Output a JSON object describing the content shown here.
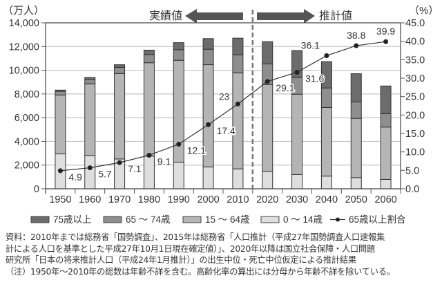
{
  "chart_data": {
    "type": "bar",
    "stacked": true,
    "categories": [
      "1950",
      "1960",
      "1970",
      "1980",
      "1990",
      "2000",
      "2010",
      "2020",
      "2030",
      "2040",
      "2050",
      "2060"
    ],
    "series": [
      {
        "name": "0 ～ 14歳",
        "color": "#dedede",
        "values": [
          2943,
          2807,
          2515,
          2751,
          2249,
          1847,
          1680,
          1457,
          1204,
          1073,
          939,
          791
        ]
      },
      {
        "name": "15 ～ 64歳",
        "color": "#b5b5b5",
        "values": [
          4966,
          6047,
          7212,
          7883,
          8590,
          8622,
          8103,
          7341,
          6773,
          5787,
          5001,
          4418
        ]
      },
      {
        "name": "65 ～ 74歳",
        "color": "#8e8e8e",
        "values": [
          309,
          375,
          516,
          699,
          892,
          1301,
          1517,
          1733,
          1407,
          1645,
          1383,
          1128
        ]
      },
      {
        "name": "75歳以上",
        "color": "#6c6c6c",
        "values": [
          106,
          163,
          224,
          366,
          597,
          900,
          1407,
          1879,
          2278,
          2223,
          2385,
          2336
        ]
      }
    ],
    "line_series": {
      "name": "65歳以上割合",
      "axis": "right",
      "values": [
        4.9,
        5.7,
        7.1,
        9.1,
        12.1,
        17.4,
        23,
        29.1,
        31.6,
        36.1,
        38.8,
        39.9
      ],
      "labels": [
        "4.9",
        "5.7",
        "7.1",
        "9.1",
        "12.1",
        "17.4",
        "23",
        "29.1",
        "31.6",
        "36.1",
        "38.8",
        "39.9"
      ]
    },
    "y_left": {
      "label": "（万人）",
      "range": [
        0,
        14000
      ],
      "ticks": [
        "0",
        "2,000",
        "4,000",
        "6,000",
        "8,000",
        "10,000",
        "12,000",
        "14,000"
      ]
    },
    "y_right": {
      "label": "（%）",
      "range": [
        0,
        45
      ],
      "ticks": [
        "0.0",
        "5.0",
        "10.0",
        "15.0",
        "20.0",
        "25.0",
        "30.0",
        "35.0",
        "40.0",
        "45.0"
      ]
    },
    "divider_after": "2010",
    "annotations": {
      "actual": "実績値",
      "projected": "推計値"
    },
    "grid": true,
    "legend_position": "bottom",
    "legend": [
      "75歳以上",
      "65 ～ 74歳",
      "15 ～ 64歳",
      "0 ～ 14歳",
      "65歳以上割合"
    ]
  },
  "notes": [
    "資料：2010年までは総務省「国勢調査」、2015年は総務省「人口推計（平成27年国勢調査人口速報集",
    "計による人口を基準とした平成27年10月1日現在確定値）」、2020年以降は国立社会保障・人口問題",
    "研究所「日本の将来推計人口（平成24年1月推計）」の出生中位・死亡中位仮定による推計結果",
    "（注）1950年～2010年の総数は年齢不詳を含む。高齢化率の算出には分母から年齢不詳を除いている。"
  ]
}
